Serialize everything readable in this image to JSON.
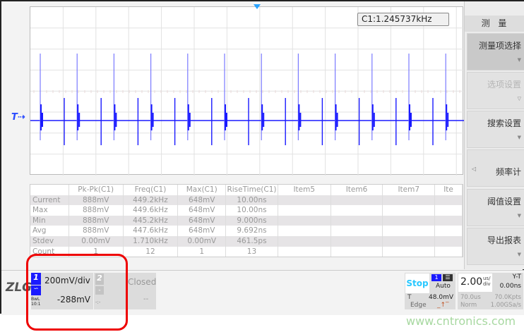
{
  "readout": {
    "frequency": "C1:1.245737kHz"
  },
  "channel_marker": "T",
  "table": {
    "headers": [
      "",
      "Pk-Pk(C1)",
      "Freq(C1)",
      "Max(C1)",
      "RiseTime(C1)",
      "Item5",
      "Item6",
      "Item7",
      "Ite"
    ],
    "rows": [
      [
        "Current",
        "888mV",
        "449.2kHz",
        "648mV",
        "10.00ns",
        "",
        "",
        "",
        ""
      ],
      [
        "Max",
        "888mV",
        "449.6kHz",
        "648mV",
        "10.00ns",
        "",
        "",
        "",
        ""
      ],
      [
        "Min",
        "888mV",
        "445.2kHz",
        "648mV",
        "9.000ns",
        "",
        "",
        "",
        ""
      ],
      [
        "Avg",
        "888mV",
        "447.6kHz",
        "648mV",
        "9.692ns",
        "",
        "",
        "",
        ""
      ],
      [
        "Stdev",
        "0.00mV",
        "1.710kHz",
        "0.00mV",
        "461.5ps",
        "",
        "",
        "",
        ""
      ],
      [
        "Count",
        "1",
        "12",
        "1",
        "13",
        "",
        "",
        "",
        ""
      ]
    ]
  },
  "side": {
    "title": "测 量",
    "buttons": [
      "测量项选择",
      "选项设置",
      "搜索设置",
      "频率计",
      "阈值设置",
      "导出报表"
    ]
  },
  "bottom": {
    "logo": "ZLG",
    "logo_mark": "®",
    "ch1": {
      "num": "1",
      "scale": "200mV/div",
      "offset": "-288mV",
      "bw": "BwL",
      "probe": "10:1"
    },
    "ch2": {
      "num": "2",
      "status": "Closed",
      "dash": "-",
      "offset": "--",
      "coupling": "-:-"
    },
    "run": {
      "state": "Stop",
      "mode": "Auto",
      "trig_src": "1",
      "trig_label": "T",
      "trig_level": "48.0mV",
      "trig_type": "Edge"
    },
    "timebase": {
      "value": "2.00",
      "unit_top": "us/",
      "unit_bot": "div",
      "mode": "Y-T",
      "delay": "0.00ns",
      "window": "70.0us",
      "points": "70.0Kpts",
      "acq": "Norm",
      "rate": "1.00GSa/s"
    }
  },
  "watermark": "www.cntronics.com",
  "colors": {
    "trace": "#1a1aff",
    "accent": "#29a3ff",
    "annotation": "#e00000"
  }
}
